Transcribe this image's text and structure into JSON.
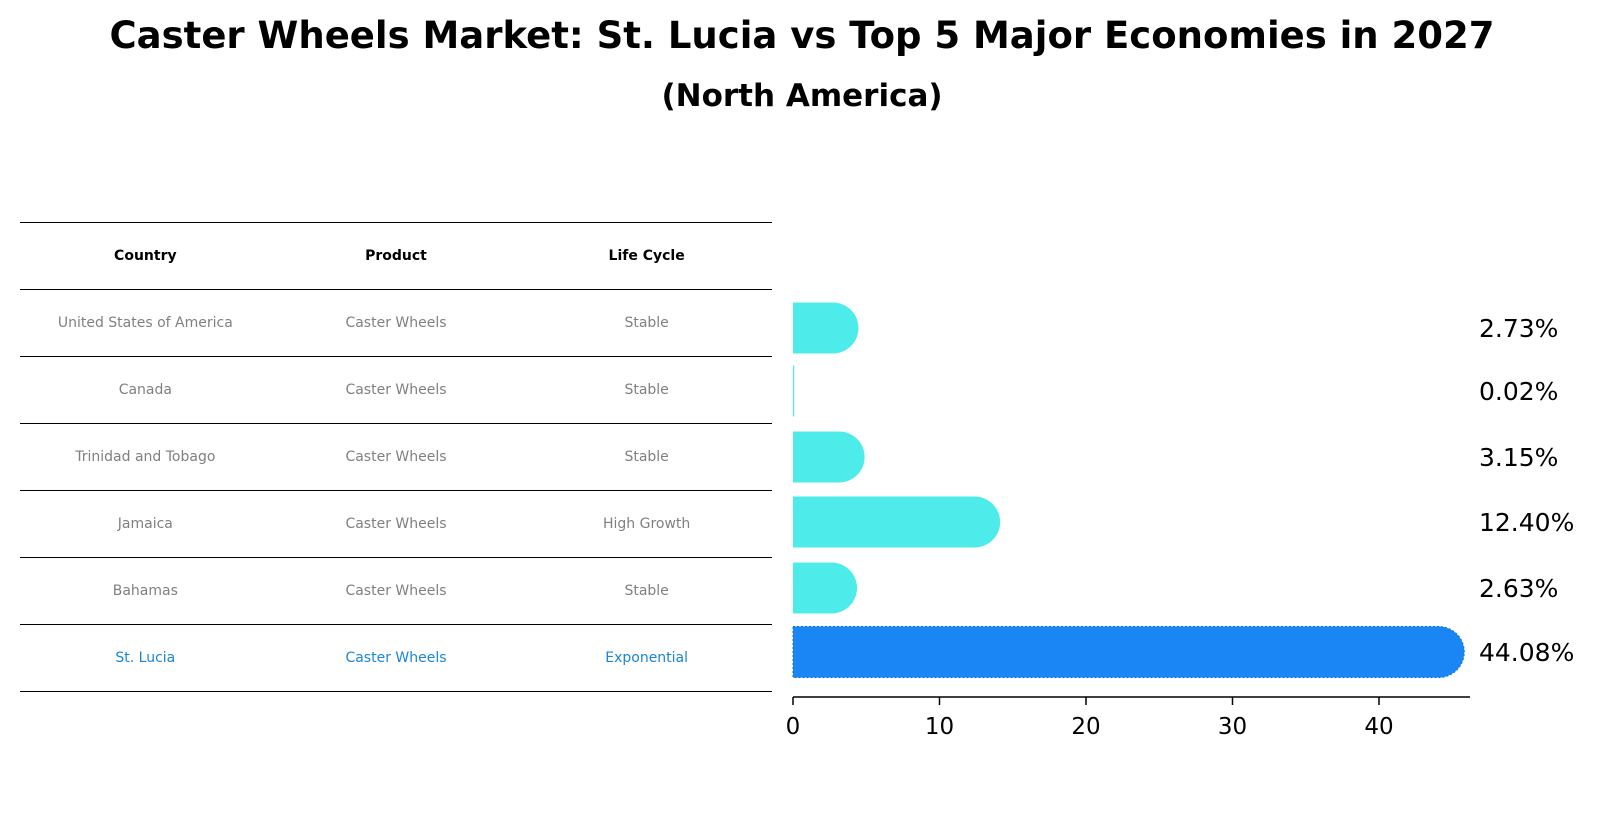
{
  "title": "Caster Wheels Market: St. Lucia vs Top 5 Major Economies in 2027",
  "subtitle": "(North America)",
  "table": {
    "headers": [
      "Country",
      "Product",
      "Life Cycle"
    ],
    "rows": [
      [
        "United States of America",
        "Caster Wheels",
        "Stable"
      ],
      [
        "Canada",
        "Caster Wheels",
        "Stable"
      ],
      [
        "Trinidad and Tobago",
        "Caster Wheels",
        "Stable"
      ],
      [
        "Jamaica",
        "Caster Wheels",
        "High Growth"
      ],
      [
        "Bahamas",
        "Caster Wheels",
        "Stable"
      ],
      [
        "St. Lucia",
        "Caster Wheels",
        "Exponential"
      ]
    ]
  },
  "colors": {
    "bar": "#4deceb",
    "highlight": "#1a86f5",
    "highlight_text": "#1a86d9",
    "muted_text": "#808080"
  },
  "chart_data": {
    "type": "bar",
    "orientation": "horizontal",
    "title": "Caster Wheels Market: St. Lucia vs Top 5 Major Economies in 2027",
    "subtitle": "(North America)",
    "categories": [
      "United States of America",
      "Canada",
      "Trinidad and Tobago",
      "Jamaica",
      "Bahamas",
      "St. Lucia"
    ],
    "values": [
      2.73,
      0.02,
      3.15,
      12.4,
      2.63,
      44.08
    ],
    "labels": [
      "2.73%",
      "0.02%",
      "3.15%",
      "12.40%",
      "2.63%",
      "44.08%"
    ],
    "highlight": "St. Lucia",
    "xticks": [
      0,
      10,
      20,
      30,
      40
    ],
    "xlim": [
      0,
      46.3
    ],
    "xlabel": "",
    "ylabel": ""
  }
}
